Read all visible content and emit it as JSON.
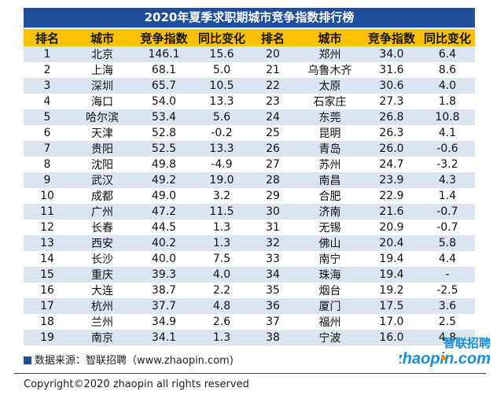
{
  "title": "2020年夏季求职期城市竞争指数排行榜",
  "headers": [
    "排名",
    "城市",
    "竞争指数",
    "同比变化",
    "排名",
    "城市",
    "竞争指数",
    "同比变化"
  ],
  "rows": [
    [
      "1",
      "北京",
      "146.1",
      "15.6",
      "20",
      "郑州",
      "34.0",
      "6.4"
    ],
    [
      "2",
      "上海",
      "68.1",
      "5.0",
      "21",
      "乌鲁木齐",
      "31.6",
      "8.6"
    ],
    [
      "3",
      "深圳",
      "65.7",
      "10.5",
      "22",
      "太原",
      "30.6",
      "4.0"
    ],
    [
      "4",
      "海口",
      "54.0",
      "13.3",
      "23",
      "石家庄",
      "27.3",
      "1.8"
    ],
    [
      "5",
      "哈尔滨",
      "53.4",
      "5.6",
      "24",
      "东莞",
      "26.8",
      "10.8"
    ],
    [
      "6",
      "天津",
      "52.8",
      "-0.2",
      "25",
      "昆明",
      "26.3",
      "4.1"
    ],
    [
      "7",
      "贵阳",
      "52.5",
      "13.3",
      "26",
      "青岛",
      "26.0",
      "-0.6"
    ],
    [
      "8",
      "沈阳",
      "49.8",
      "-4.9",
      "27",
      "苏州",
      "24.7",
      "-3.2"
    ],
    [
      "9",
      "武汉",
      "49.2",
      "19.0",
      "28",
      "南昌",
      "23.9",
      "4.3"
    ],
    [
      "10",
      "成都",
      "49.0",
      "3.2",
      "29",
      "合肥",
      "22.9",
      "1.4"
    ],
    [
      "11",
      "广州",
      "47.2",
      "11.5",
      "30",
      "济南",
      "21.6",
      "-0.7"
    ],
    [
      "12",
      "长春",
      "44.5",
      "1.3",
      "31",
      "无锡",
      "20.9",
      "-0.7"
    ],
    [
      "13",
      "西安",
      "40.2",
      "1.3",
      "32",
      "佛山",
      "20.4",
      "5.8"
    ],
    [
      "14",
      "长沙",
      "40.0",
      "7.5",
      "33",
      "南宁",
      "19.4",
      "4.4"
    ],
    [
      "15",
      "重庆",
      "39.3",
      "4.0",
      "34",
      "珠海",
      "19.4",
      "-"
    ],
    [
      "16",
      "大连",
      "38.7",
      "2.2",
      "35",
      "烟台",
      "19.2",
      "-2.5"
    ],
    [
      "17",
      "杭州",
      "37.7",
      "4.8",
      "36",
      "厦门",
      "17.5",
      "3.6"
    ],
    [
      "18",
      "兰州",
      "34.9",
      "2.6",
      "37",
      "福州",
      "17.0",
      "2.5"
    ],
    [
      "19",
      "南京",
      "34.1",
      "1.3",
      "38",
      "宁波",
      "16.0",
      "4.8"
    ]
  ],
  "source_text": "数据来源：智联招聘（www.zhaopin.com)",
  "logo": {
    "cn": "智联招聘",
    "en": "zhaopin.com"
  },
  "copyright": "Copyright©2020 zhaopin all rights reserved",
  "colors": {
    "title_bg": "#1f4e9a",
    "header_bg": "#ffc000",
    "alt_row_bg": "#dbe4f1",
    "logo_blue": "#1a8fd6",
    "logo_orange": "#f08c00"
  }
}
